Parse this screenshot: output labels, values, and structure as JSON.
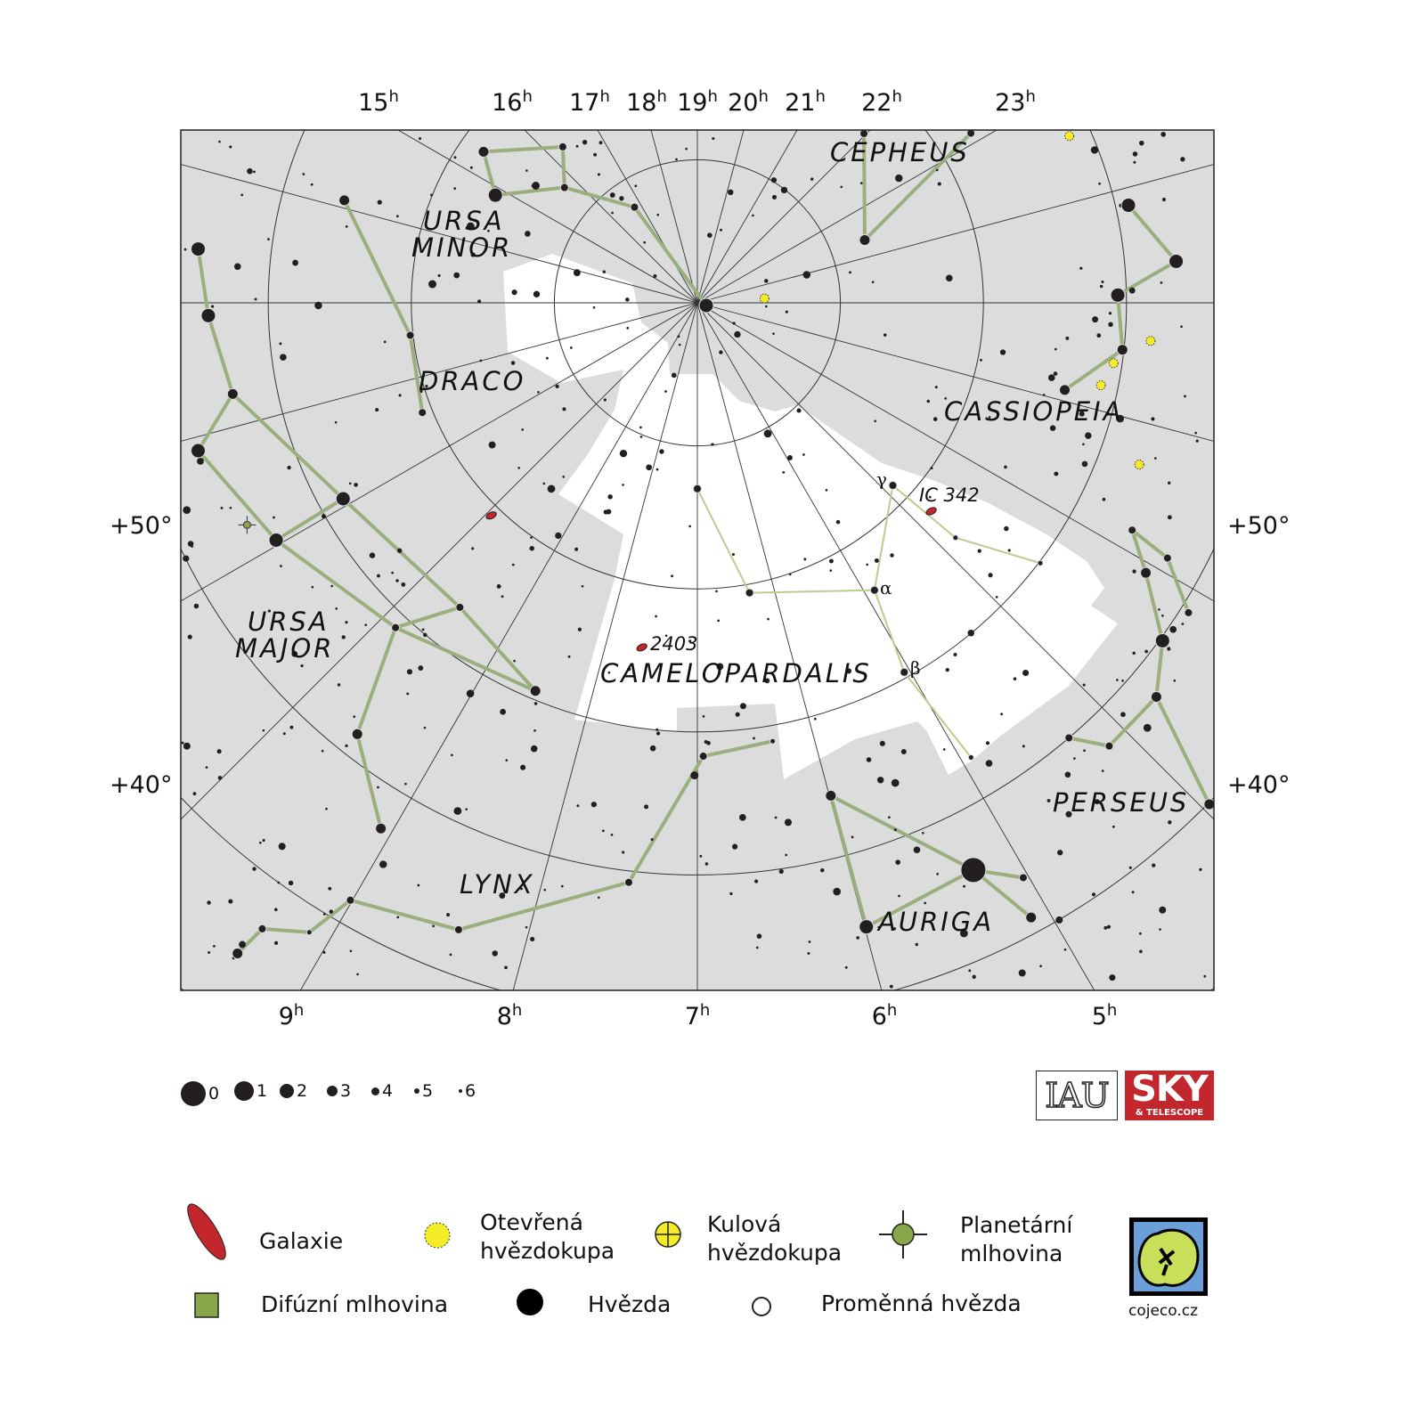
{
  "map": {
    "projection": "polar, north celestial pole",
    "colors": {
      "sky": "#dcdcdc",
      "constellation_area": "#ffffff",
      "lines": "#9aae7e",
      "star": "#231f20",
      "galaxy": "#c1272d",
      "open_cluster": "#f5ec28",
      "planetary": "#8aa64a"
    },
    "ra_labels_top": [
      "15h",
      "16h",
      "17h",
      "18h",
      "19h",
      "20h",
      "21h",
      "22h",
      "23h"
    ],
    "ra_labels_bottom": [
      "9h",
      "8h",
      "7h",
      "6h",
      "5h"
    ],
    "dec_labels": [
      "+50°",
      "+40°"
    ],
    "constellations": [
      "CEPHEUS",
      "URSA",
      "MINOR",
      "DRACO",
      "CASSIOPEIA",
      "URSA",
      "MAJOR",
      "CAMELOPARDALIS",
      "LYNX",
      "PERSEUS",
      "AURIGA"
    ],
    "greek": {
      "alpha": "α",
      "beta": "β",
      "gamma": "γ"
    },
    "stars": [
      {
        "id": "cam1",
        "ra": 7.0,
        "dec": 77.0,
        "mag": 4
      },
      {
        "id": "cam2",
        "ra": 6.32,
        "dec": 69.4,
        "mag": 4
      },
      {
        "id": "cam_a",
        "ra": 4.89,
        "dec": 66.4,
        "mag": 4
      },
      {
        "id": "cam_g",
        "ra": 3.87,
        "dec": 71.3,
        "mag": 4
      },
      {
        "id": "cam3",
        "ra": 3.82,
        "dec": 65.6,
        "mag": 5
      },
      {
        "id": "cam4",
        "ra": 3.48,
        "dec": 59.9,
        "mag": 5
      },
      {
        "id": "cam_b",
        "ra": 5.05,
        "dec": 60.4,
        "mag": 4
      },
      {
        "id": "cam5",
        "ra": 4.93,
        "dec": 52.9,
        "mag": 5
      },
      {
        "id": "umi1",
        "ra": 15.35,
        "dec": 71.7,
        "mag": 3
      },
      {
        "id": "umi2",
        "ra": 16.28,
        "dec": 75.6,
        "mag": 4
      },
      {
        "id": "umi3",
        "ra": 14.87,
        "dec": 74.0,
        "mag": 2
      },
      {
        "id": "umi4",
        "ra": 15.73,
        "dec": 77.7,
        "mag": 4
      },
      {
        "id": "umi5",
        "ra": 16.78,
        "dec": 82.0,
        "mag": 4
      },
      {
        "id": "polaris",
        "ra": 2.11,
        "dec": 89.35,
        "mag": 2
      },
      {
        "id": "cep1",
        "ra": 23.63,
        "dec": 77.5,
        "mag": 3
      },
      {
        "id": "cep2",
        "ra": 22.88,
        "dec": 67.5,
        "mag": 4
      },
      {
        "id": "cep3",
        "ra": 21.97,
        "dec": 73.4,
        "mag": 4
      },
      {
        "id": "cas1",
        "ra": 0.15,
        "dec": 59.1,
        "mag": 2
      },
      {
        "id": "cas2",
        "ra": 0.67,
        "dec": 56.4,
        "mag": 2
      },
      {
        "id": "cas3",
        "ra": 0.93,
        "dec": 60.6,
        "mag": 2
      },
      {
        "id": "cas4",
        "ra": 1.42,
        "dec": 60.1,
        "mag": 3
      },
      {
        "id": "cas5",
        "ra": 1.89,
        "dec": 63.6,
        "mag": 3
      },
      {
        "id": "uma1",
        "ra": 13.41,
        "dec": 54.9,
        "mag": 2
      },
      {
        "id": "uma2",
        "ra": 12.9,
        "dec": 55.8,
        "mag": 2
      },
      {
        "id": "uma3",
        "ra": 12.26,
        "dec": 56.9,
        "mag": 3
      },
      {
        "id": "uma4",
        "ra": 11.9,
        "dec": 53.6,
        "mag": 2
      },
      {
        "id": "uma5",
        "ra": 11.07,
        "dec": 61.7,
        "mag": 2
      },
      {
        "id": "uma6",
        "ra": 11.04,
        "dec": 56.2,
        "mag": 2
      },
      {
        "id": "uma7",
        "ra": 9.53,
        "dec": 63.0,
        "mag": 4
      },
      {
        "id": "uma8",
        "ra": 8.51,
        "dec": 60.6,
        "mag": 3
      },
      {
        "id": "uma9",
        "ra": 9.86,
        "dec": 59.0,
        "mag": 4
      },
      {
        "id": "uma10",
        "ra": 9.55,
        "dec": 51.6,
        "mag": 3
      },
      {
        "id": "uma11",
        "ra": 9.07,
        "dec": 47.1,
        "mag": 3
      },
      {
        "id": "lyn1",
        "ra": 9.35,
        "dec": 34.3,
        "mag": 3
      },
      {
        "id": "lyn2",
        "ra": 9.32,
        "dec": 36.7,
        "mag": 4
      },
      {
        "id": "lyn3",
        "ra": 9.11,
        "dec": 38.3,
        "mag": 5
      },
      {
        "id": "lyn4",
        "ra": 9.01,
        "dec": 41.7,
        "mag": 4
      },
      {
        "id": "lyn5",
        "ra": 8.39,
        "dec": 43.1,
        "mag": 4
      },
      {
        "id": "lyn6",
        "ra": 7.45,
        "dec": 49.2,
        "mag": 4
      },
      {
        "id": "lyn7",
        "ra": 6.95,
        "dec": 58.3,
        "mag": 4
      },
      {
        "id": "lyn8",
        "ra": 6.35,
        "dec": 58.9,
        "mag": 5
      },
      {
        "id": "aur1",
        "ra": 5.99,
        "dec": 54.3,
        "mag": 3
      },
      {
        "id": "aur2",
        "ra": 5.99,
        "dec": 44.8,
        "mag": 2
      },
      {
        "id": "capella",
        "ra": 5.27,
        "dec": 45.9,
        "mag": 0
      },
      {
        "id": "aur3",
        "ra": 5.03,
        "dec": 43.8,
        "mag": 4
      },
      {
        "id": "aur4",
        "ra": 5.1,
        "dec": 41.1,
        "mag": 3
      },
      {
        "id": "per1",
        "ra": 2.84,
        "dec": 55.7,
        "mag": 4
      },
      {
        "id": "per2",
        "ra": 3.07,
        "dec": 53.4,
        "mag": 3
      },
      {
        "id": "per3",
        "ra": 2.9,
        "dec": 52.6,
        "mag": 4
      },
      {
        "id": "mirfak",
        "ra": 3.4,
        "dec": 49.8,
        "mag": 2
      },
      {
        "id": "per4",
        "ra": 3.71,
        "dec": 47.7,
        "mag": 3
      },
      {
        "id": "per5",
        "ra": 3.96,
        "dec": 39.9,
        "mag": 3
      },
      {
        "id": "per6",
        "ra": 4.14,
        "dec": 47.7,
        "mag": 4
      },
      {
        "id": "per7",
        "ra": 4.3,
        "dec": 50.0,
        "mag": 4
      },
      {
        "id": "per8",
        "ra": 3.15,
        "dec": 49.4,
        "mag": 4
      },
      {
        "id": "dra1",
        "ra": 14.08,
        "dec": 64.3,
        "mag": 3
      },
      {
        "id": "dra2",
        "ra": 12.57,
        "dec": 69.8,
        "mag": 4
      },
      {
        "id": "dra3",
        "ra": 11.55,
        "dec": 69.3,
        "mag": 4
      }
    ],
    "lines": [
      [
        "cam1",
        "cam2"
      ],
      [
        "cam2",
        "cam_a"
      ],
      [
        "cam_a",
        "cam_g"
      ],
      [
        "cam_g",
        "cam3"
      ],
      [
        "cam3",
        "cam4"
      ],
      [
        "cam_a",
        "cam_b"
      ],
      [
        "cam_b",
        "cam5"
      ],
      [
        "umi1",
        "umi2"
      ],
      [
        "umi2",
        "umi4"
      ],
      [
        "umi4",
        "umi3"
      ],
      [
        "umi3",
        "umi1"
      ],
      [
        "umi4",
        "umi5"
      ],
      [
        "umi5",
        "polaris"
      ],
      [
        "cep1",
        "cep2"
      ],
      [
        "cep1",
        "cep3"
      ],
      [
        "cas1",
        "cas2"
      ],
      [
        "cas2",
        "cas3"
      ],
      [
        "cas3",
        "cas4"
      ],
      [
        "cas4",
        "cas5"
      ],
      [
        "uma1",
        "uma2"
      ],
      [
        "uma2",
        "uma3"
      ],
      [
        "uma3",
        "uma5"
      ],
      [
        "uma5",
        "uma7"
      ],
      [
        "uma7",
        "uma8"
      ],
      [
        "uma8",
        "uma9"
      ],
      [
        "uma9",
        "uma6"
      ],
      [
        "uma6",
        "uma4"
      ],
      [
        "uma4",
        "uma3"
      ],
      [
        "uma6",
        "uma5"
      ],
      [
        "uma9",
        "uma7"
      ],
      [
        "uma9",
        "uma10"
      ],
      [
        "uma10",
        "uma11"
      ],
      [
        "lyn1",
        "lyn2"
      ],
      [
        "lyn2",
        "lyn3"
      ],
      [
        "lyn3",
        "lyn4"
      ],
      [
        "lyn4",
        "lyn5"
      ],
      [
        "lyn5",
        "lyn6"
      ],
      [
        "lyn6",
        "lyn7"
      ],
      [
        "lyn7",
        "lyn8"
      ],
      [
        "aur1",
        "capella"
      ],
      [
        "capella",
        "aur3"
      ],
      [
        "aur1",
        "aur2"
      ],
      [
        "aur2",
        "capella"
      ],
      [
        "capella",
        "aur4"
      ],
      [
        "per1",
        "per2"
      ],
      [
        "per2",
        "mirfak"
      ],
      [
        "mirfak",
        "per4"
      ],
      [
        "per4",
        "per5"
      ],
      [
        "per1",
        "per3"
      ],
      [
        "per3",
        "per8"
      ],
      [
        "per4",
        "per6"
      ],
      [
        "per6",
        "per7"
      ],
      [
        "dra1",
        "dra2"
      ],
      [
        "dra2",
        "dra3"
      ]
    ],
    "deep_sky": [
      {
        "type": "galaxy",
        "label": "2403",
        "ra": 7.61,
        "dec": 65.6
      },
      {
        "type": "galaxy",
        "label": "IC 342",
        "ra": 3.78,
        "dec": 68.1
      },
      {
        "type": "galaxy",
        "label": "",
        "ra": 9.94,
        "dec": 69.3
      },
      {
        "type": "planetary",
        "label": "",
        "ra": 11.25,
        "dec": 54.9
      },
      {
        "type": "open_cluster",
        "label": "",
        "ra": 0.75,
        "dec": 85.3
      },
      {
        "type": "open_cluster",
        "label": "",
        "ra": 23.39,
        "dec": 61.5
      },
      {
        "type": "open_cluster",
        "label": "",
        "ra": 1.55,
        "dec": 60.6
      },
      {
        "type": "open_cluster",
        "label": "",
        "ra": 1.77,
        "dec": 61.2
      },
      {
        "type": "open_cluster",
        "label": "",
        "ra": 2.34,
        "dec": 57.1
      },
      {
        "type": "open_cluster",
        "label": "",
        "ra": 1.32,
        "dec": 58.2
      }
    ]
  },
  "magnitude_scale": [
    "0",
    "1",
    "2",
    "3",
    "4",
    "5",
    "6"
  ],
  "legend": {
    "galaxy": "Galaxie",
    "open_cluster_1": "Otevřená",
    "open_cluster_2": "hvězdokupa",
    "globular_1": "Kulová",
    "globular_2": "hvězdokupa",
    "planetary_1": "Planetární",
    "planetary_2": "mlhovina",
    "diffuse": "Difúzní mlhovina",
    "star": "Hvězda",
    "variable": "Proměnná hvězda"
  },
  "logos": {
    "iau": "IAU",
    "sky1": "SKY",
    "sky2": "& TELESCOPE",
    "cojeco": "cojeco.cz"
  }
}
